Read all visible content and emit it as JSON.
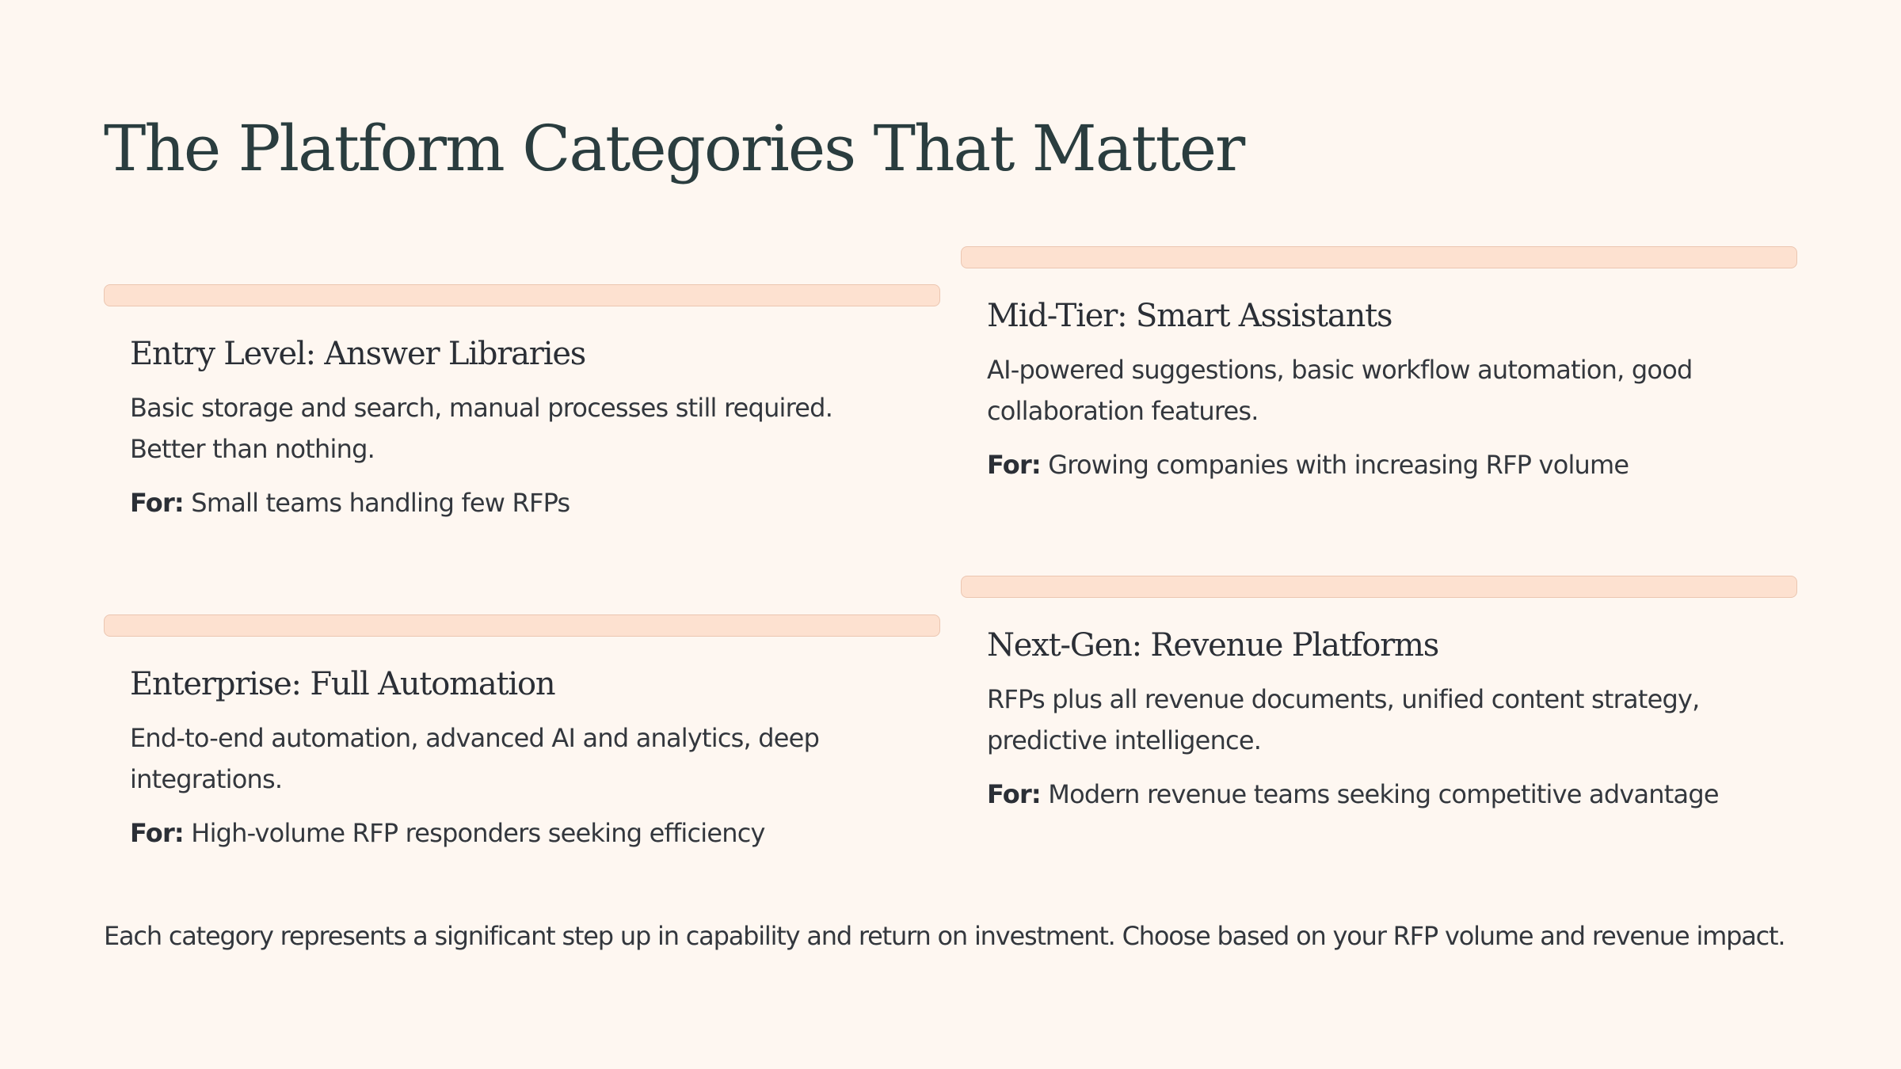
{
  "slide": {
    "title": "The Platform Categories That Matter",
    "footer": "Each category represents a significant step up in capability and return on investment. Choose based on your RFP volume and revenue impact."
  },
  "cards": [
    {
      "title": "Entry Level: Answer Libraries",
      "description": "Basic storage and search, manual processes still required. Better than nothing.",
      "for_label": "For:",
      "for_text": " Small teams handling few RFPs"
    },
    {
      "title": "Mid-Tier: Smart Assistants",
      "description": "AI-powered suggestions, basic workflow automation, good collaboration features.",
      "for_label": "For:",
      "for_text": " Growing companies with increasing RFP volume"
    },
    {
      "title": "Enterprise: Full Automation",
      "description": "End-to-end automation, advanced AI and analytics, deep integrations.",
      "for_label": "For:",
      "for_text": " High-volume RFP responders seeking efficiency"
    },
    {
      "title": "Next-Gen: Revenue Platforms",
      "description": "RFPs plus all revenue documents, unified content strategy, predictive intelligence.",
      "for_label": "For:",
      "for_text": " Modern revenue teams seeking competitive advantage"
    }
  ],
  "colors": {
    "background": "#fef7f1",
    "title": "#2a3d3f",
    "bar_fill": "#fde1d0",
    "bar_border": "#ebc6b1",
    "text": "#33373d"
  }
}
